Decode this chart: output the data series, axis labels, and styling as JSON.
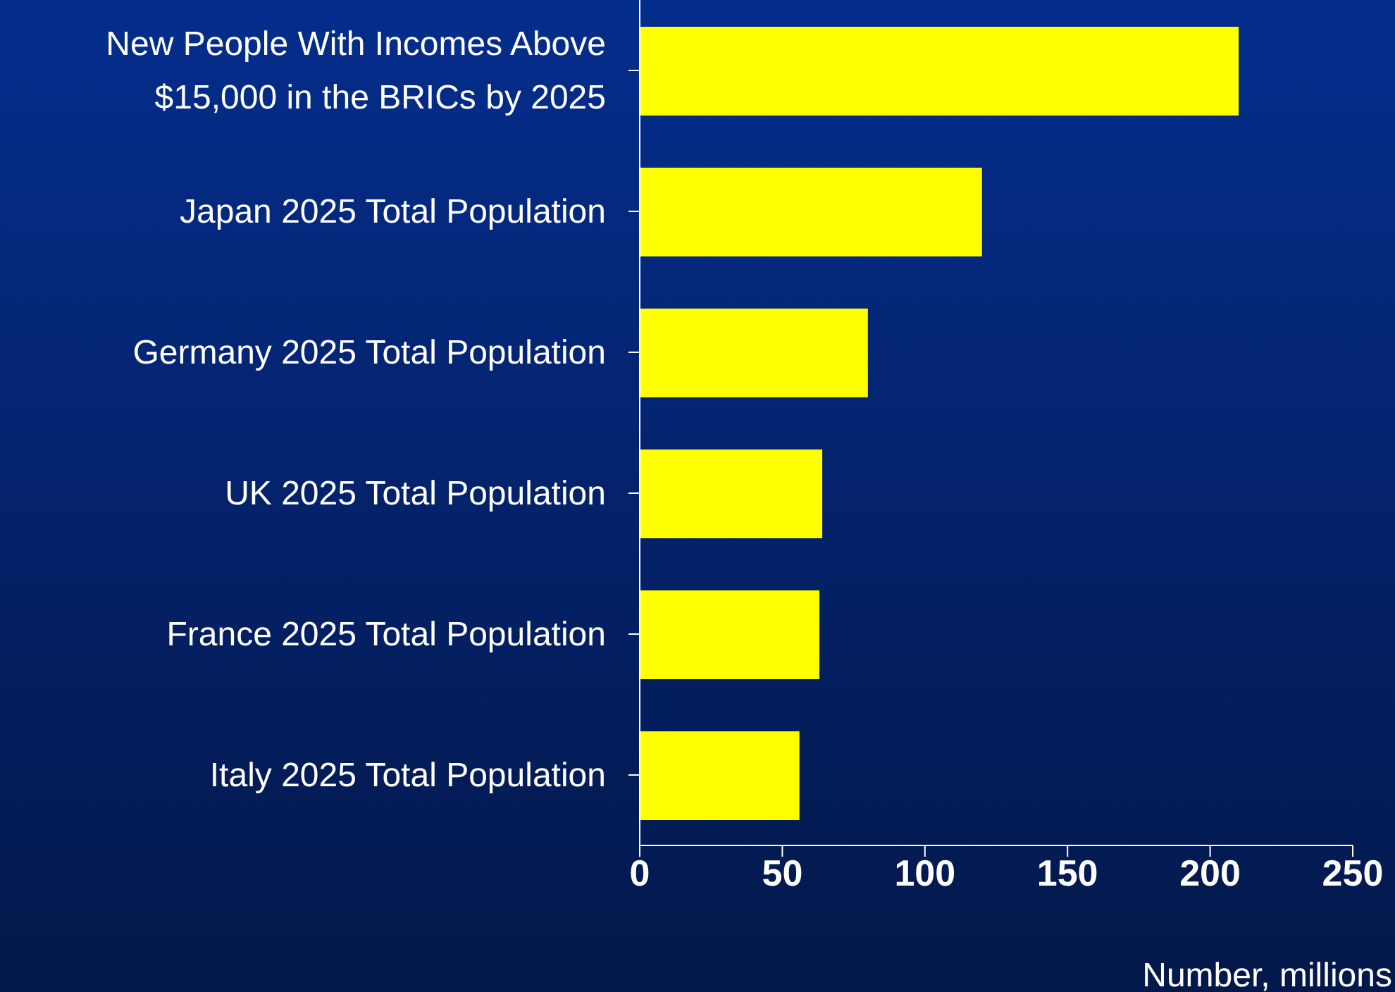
{
  "chart_data": {
    "type": "bar",
    "orientation": "horizontal",
    "categories": [
      "New People With Incomes Above $15,000 in the BRICs by 2025",
      "Japan 2025 Total Population",
      "Germany 2025 Total Population",
      "UK 2025 Total Population",
      "France 2025 Total Population",
      "Italy 2025 Total Population"
    ],
    "values": [
      210,
      120,
      80,
      64,
      63,
      56
    ],
    "color": "#ffff00",
    "xlabel": "Number, millions",
    "xlim": [
      0,
      250
    ],
    "xticks": [
      0,
      50,
      100,
      150,
      200,
      250
    ],
    "grid": false
  }
}
